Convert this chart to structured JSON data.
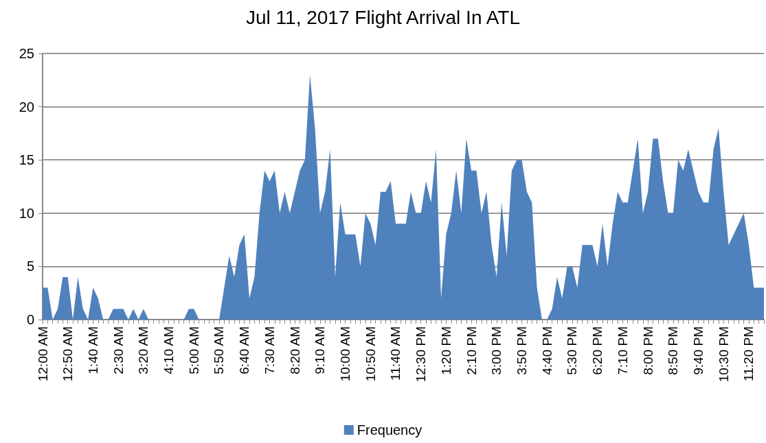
{
  "chart_data": {
    "type": "area",
    "title": "Jul 11, 2017 Flight Arrival In ATL",
    "categories": [
      "12:00 AM",
      null,
      null,
      null,
      null,
      "12:50 AM",
      null,
      null,
      null,
      null,
      "1:40 AM",
      null,
      null,
      null,
      null,
      "2:30 AM",
      null,
      null,
      null,
      null,
      "3:20 AM",
      null,
      null,
      null,
      null,
      "4:10 AM",
      null,
      null,
      null,
      null,
      "5:00 AM",
      null,
      null,
      null,
      null,
      "5:50 AM",
      null,
      null,
      null,
      null,
      "6:40 AM",
      null,
      null,
      null,
      null,
      "7:30 AM",
      null,
      null,
      null,
      null,
      "8:20 AM",
      null,
      null,
      null,
      null,
      "9:10 AM",
      null,
      null,
      null,
      null,
      "10:00 AM",
      null,
      null,
      null,
      null,
      "10:50 AM",
      null,
      null,
      null,
      null,
      "11:40 AM",
      null,
      null,
      null,
      null,
      "12:30 PM",
      null,
      null,
      null,
      null,
      "1:20 PM",
      null,
      null,
      null,
      null,
      "2:10 PM",
      null,
      null,
      null,
      null,
      "3:00 PM",
      null,
      null,
      null,
      null,
      "3:50 PM",
      null,
      null,
      null,
      null,
      "4:40 PM",
      null,
      null,
      null,
      null,
      "5:30 PM",
      null,
      null,
      null,
      null,
      "6:20 PM",
      null,
      null,
      null,
      null,
      "7:10 PM",
      null,
      null,
      null,
      null,
      "8:00 PM",
      null,
      null,
      null,
      null,
      "8:50 PM",
      null,
      null,
      null,
      null,
      "9:40 PM",
      null,
      null,
      null,
      null,
      "10:30 PM",
      null,
      null,
      null,
      null,
      "11:20 PM",
      null,
      null,
      null
    ],
    "series": [
      {
        "name": "Frequency",
        "color": "#4f81bd",
        "values": [
          3,
          3,
          0,
          1,
          4,
          4,
          0,
          4,
          1,
          0,
          3,
          2,
          0,
          0,
          1,
          1,
          1,
          0,
          1,
          0,
          1,
          0,
          0,
          0,
          0,
          0,
          0,
          0,
          0,
          1,
          1,
          0,
          0,
          0,
          0,
          0,
          3,
          6,
          4,
          7,
          8,
          2,
          4,
          10,
          14,
          13,
          14,
          10,
          12,
          10,
          12,
          14,
          15,
          23,
          18,
          10,
          12,
          16,
          4,
          11,
          8,
          8,
          8,
          5,
          10,
          9,
          7,
          12,
          12,
          13,
          9,
          9,
          9,
          12,
          10,
          10,
          13,
          11,
          16,
          2,
          8,
          10,
          14,
          10,
          17,
          14,
          14,
          10,
          12,
          7,
          4,
          11,
          6,
          14,
          15,
          15,
          12,
          11,
          3,
          0,
          0,
          1,
          4,
          2,
          5,
          5,
          3,
          7,
          7,
          7,
          5,
          9,
          5,
          9,
          12,
          11,
          11,
          14,
          17,
          10,
          12,
          17,
          17,
          13,
          10,
          10,
          15,
          14,
          16,
          14,
          12,
          11,
          11,
          16,
          18,
          12,
          7,
          8,
          9,
          10,
          7,
          3,
          3,
          3
        ]
      }
    ],
    "ylim": [
      0,
      25
    ],
    "yticks": [
      0,
      5,
      10,
      15,
      20,
      25
    ],
    "grid": "y",
    "legend": "bottom"
  }
}
